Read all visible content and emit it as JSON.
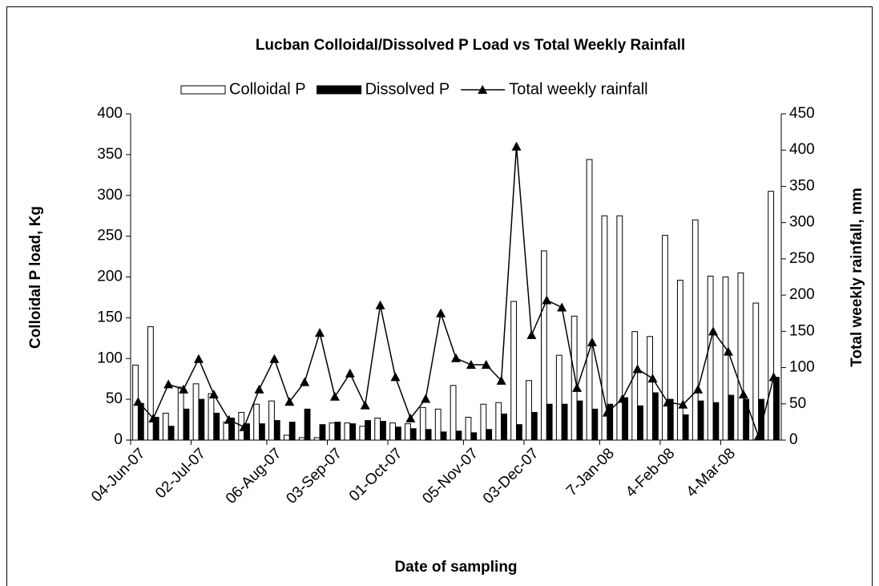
{
  "chart_data": {
    "type": "bar_line",
    "title": "Lucban Colloidal/Dissolved P Load vs Total Weekly Rainfall",
    "x_label": "Date of sampling",
    "y_label": "Colloidal P load, Kg",
    "y2_label": "Total weekly rainfall, mm",
    "categories": [
      "04-Jun-07",
      null,
      null,
      null,
      "02-Jul-07",
      null,
      null,
      null,
      null,
      "06-Aug-07",
      null,
      null,
      null,
      "03-Sep-07",
      null,
      null,
      null,
      "01-Oct-07",
      null,
      null,
      null,
      null,
      "05-Nov-07",
      null,
      null,
      null,
      "03-Dec-07",
      null,
      null,
      null,
      null,
      "7-Jan-08",
      null,
      null,
      null,
      "4-Feb-08",
      null,
      null,
      null,
      "4-Mar-08",
      null,
      null,
      null
    ],
    "series": [
      {
        "name": "Colloidal P",
        "type": "bar",
        "color": "#ffffff",
        "values": [
          92,
          139,
          33,
          65,
          69,
          57,
          22,
          34,
          44,
          48,
          6,
          3,
          3,
          21,
          21,
          17,
          27,
          21,
          20,
          40,
          38,
          67,
          28,
          44,
          46,
          170,
          73,
          232,
          104,
          152,
          344,
          275,
          275,
          133,
          127,
          251,
          196,
          270,
          201,
          200,
          205,
          168,
          305
        ]
      },
      {
        "name": "Dissolved P",
        "type": "bar",
        "color": "#000000",
        "values": [
          45,
          28,
          17,
          38,
          50,
          33,
          27,
          20,
          20,
          24,
          22,
          38,
          19,
          22,
          20,
          24,
          23,
          16,
          14,
          13,
          10,
          11,
          9,
          13,
          32,
          19,
          34,
          44,
          44,
          48,
          38,
          44,
          52,
          42,
          58,
          50,
          31,
          48,
          46,
          55,
          50,
          50,
          77
        ]
      },
      {
        "name": "Total weekly rainfall",
        "type": "line",
        "axis": "y2",
        "color": "#000000",
        "values": [
          53,
          30,
          77,
          70,
          112,
          63,
          28,
          18,
          70,
          112,
          53,
          80,
          148,
          60,
          92,
          48,
          186,
          87,
          30,
          57,
          175,
          113,
          104,
          104,
          82,
          405,
          145,
          193,
          183,
          72,
          135,
          38,
          57,
          98,
          85,
          52,
          49,
          70,
          150,
          122,
          63,
          5,
          87
        ]
      }
    ],
    "ylim": [
      0,
      400
    ],
    "yticks": [
      0,
      50,
      100,
      150,
      200,
      250,
      300,
      350,
      400
    ],
    "y2lim": [
      0,
      450
    ],
    "y2ticks": [
      0,
      50,
      100,
      150,
      200,
      250,
      300,
      350,
      400,
      450
    ],
    "grid": false,
    "legend": "top"
  }
}
